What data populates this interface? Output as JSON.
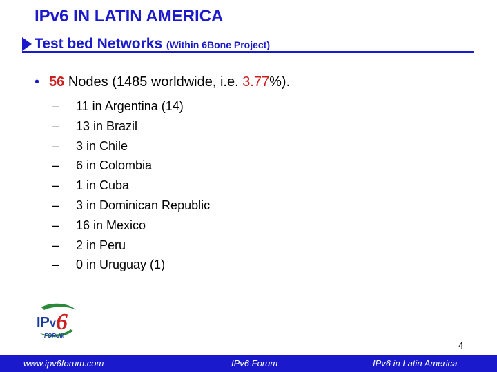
{
  "header": {
    "title": "IPv6 IN LATIN AMERICA",
    "subtitle_main": "Test bed Networks",
    "subtitle_small": "(Within 6Bone Project)"
  },
  "main_bullet": {
    "count": "56",
    "text_a": " Nodes (1485 worldwide, i.e. ",
    "percent": "3.77",
    "text_b": "%)."
  },
  "countries": [
    "11 in Argentina (14)",
    "13 in Brazil",
    "3 in Chile",
    "6 in Colombia",
    "1 in Cuba",
    "3 in Dominican Republic",
    "16 in Mexico",
    "2 in Peru",
    "0 in Uruguay (1)"
  ],
  "logo": {
    "icon": "ipv6-forum-logo",
    "text": "FORUM"
  },
  "page_number": "4",
  "footer": {
    "left": "www.ipv6forum.com",
    "center": "IPv6 Forum",
    "right": "IPv6 in Latin America"
  },
  "colors": {
    "accent": "#1a1acc",
    "highlight": "#cc2020",
    "text": "#000000"
  }
}
